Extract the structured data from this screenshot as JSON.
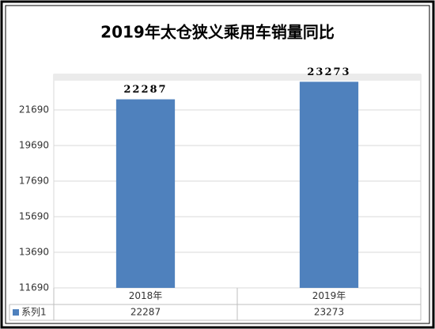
{
  "chart_data": {
    "type": "bar",
    "title": "2019年太仓狭义乘用车销量同比",
    "categories": [
      "2018年",
      "2019年"
    ],
    "series": [
      {
        "name": "系列1",
        "color": "#4f81bd",
        "values": [
          22287,
          23273
        ]
      }
    ],
    "ylim": [
      11690,
      23690
    ],
    "yticks": [
      11690,
      13690,
      15690,
      17690,
      19690,
      21690
    ],
    "grid": true
  }
}
